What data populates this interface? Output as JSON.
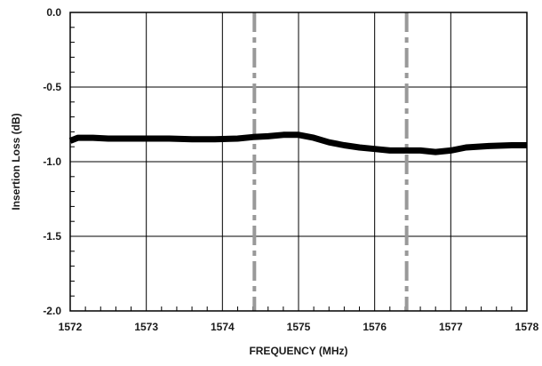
{
  "chart_data": {
    "type": "line",
    "xlabel": "FREQUENCY  (MHz)",
    "ylabel": "Insertion Loss (dB)",
    "xlim": [
      1572,
      1578
    ],
    "ylim": [
      -2.0,
      0.0
    ],
    "x_ticks": [
      "1572",
      "1573",
      "1574",
      "1575",
      "1576",
      "1577",
      "1578"
    ],
    "y_ticks": [
      "0.0",
      "-0.5",
      "-1.0",
      "-1.5",
      "-2.0"
    ],
    "grid": true,
    "minor_ticks_per_major": 5,
    "series": [
      {
        "color": "#000000",
        "x": [
          1572.0,
          1572.1,
          1572.3,
          1572.5,
          1572.8,
          1573.0,
          1573.3,
          1573.6,
          1573.9,
          1574.2,
          1574.4,
          1574.6,
          1574.8,
          1575.0,
          1575.2,
          1575.4,
          1575.6,
          1575.8,
          1576.0,
          1576.2,
          1576.4,
          1576.6,
          1576.8,
          1577.0,
          1577.2,
          1577.5,
          1577.8,
          1578.0
        ],
        "y": [
          -0.86,
          -0.84,
          -0.84,
          -0.845,
          -0.845,
          -0.845,
          -0.845,
          -0.85,
          -0.85,
          -0.845,
          -0.835,
          -0.83,
          -0.82,
          -0.82,
          -0.84,
          -0.87,
          -0.89,
          -0.905,
          -0.915,
          -0.925,
          -0.925,
          -0.925,
          -0.935,
          -0.925,
          -0.905,
          -0.895,
          -0.89,
          -0.89
        ]
      }
    ],
    "markers": [
      {
        "x": 1574.42,
        "color": "#999999",
        "style": "dash-dot"
      },
      {
        "x": 1576.42,
        "color": "#999999",
        "style": "dash-dot"
      }
    ]
  }
}
